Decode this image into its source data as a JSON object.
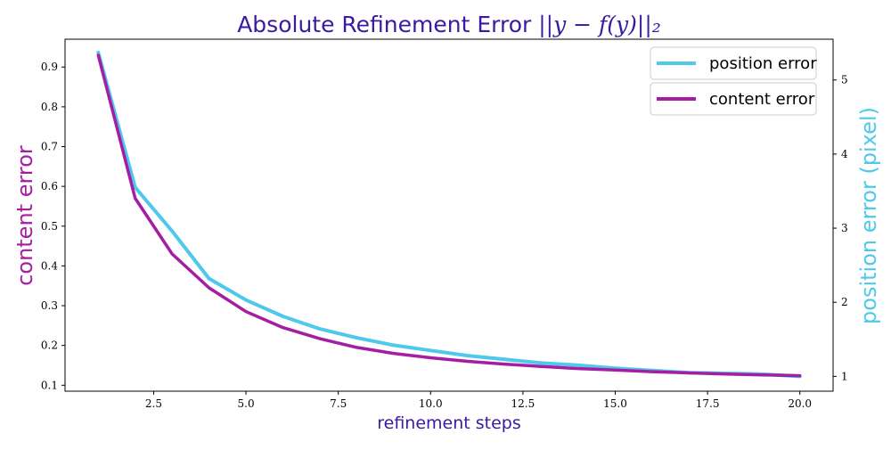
{
  "chart_data": {
    "type": "line",
    "title": "Absolute Refinement Error ||y − f(y)||₂",
    "xlabel": "refinement steps",
    "ylabel_left": "content error",
    "ylabel_right": "position error (pixel)",
    "xlim": [
      0.1,
      20.9
    ],
    "ylim_left": [
      0.085,
      0.97
    ],
    "ylim_right": [
      0.8,
      5.55
    ],
    "x_ticks": [
      2.5,
      5.0,
      7.5,
      10.0,
      12.5,
      15.0,
      17.5,
      20.0
    ],
    "x_tick_labels": [
      "2.5",
      "5.0",
      "7.5",
      "10.0",
      "12.5",
      "15.0",
      "17.5",
      "20.0"
    ],
    "y_left_ticks": [
      0.1,
      0.2,
      0.3,
      0.4,
      0.5,
      0.6,
      0.7,
      0.8,
      0.9
    ],
    "y_left_tick_labels": [
      "0.1",
      "0.2",
      "0.3",
      "0.4",
      "0.5",
      "0.6",
      "0.7",
      "0.8",
      "0.9"
    ],
    "y_right_ticks": [
      1,
      2,
      3,
      4,
      5
    ],
    "y_right_tick_labels": [
      "1",
      "2",
      "3",
      "4",
      "5"
    ],
    "x": [
      1,
      2,
      3,
      4,
      5,
      6,
      7,
      8,
      9,
      10,
      11,
      12,
      13,
      14,
      15,
      16,
      17,
      18,
      19,
      20
    ],
    "series": [
      {
        "name": "position error",
        "axis": "right",
        "color": "#4ec9ec",
        "values": [
          5.37,
          3.55,
          2.96,
          2.32,
          2.03,
          1.81,
          1.64,
          1.52,
          1.42,
          1.35,
          1.28,
          1.23,
          1.18,
          1.15,
          1.11,
          1.08,
          1.05,
          1.04,
          1.03,
          1.0
        ]
      },
      {
        "name": "content error",
        "axis": "left",
        "color": "#a51da3",
        "values": [
          0.93,
          0.57,
          0.43,
          0.345,
          0.285,
          0.245,
          0.217,
          0.195,
          0.18,
          0.169,
          0.16,
          0.153,
          0.147,
          0.142,
          0.138,
          0.134,
          0.131,
          0.128,
          0.126,
          0.124
        ]
      }
    ],
    "colors": {
      "title": "#3a1aa0",
      "xlabel": "#3a1aa0",
      "ylabel_left": "#a51da3",
      "ylabel_right": "#4ec9ec"
    },
    "legend_placement": "top-right",
    "grid": false
  }
}
